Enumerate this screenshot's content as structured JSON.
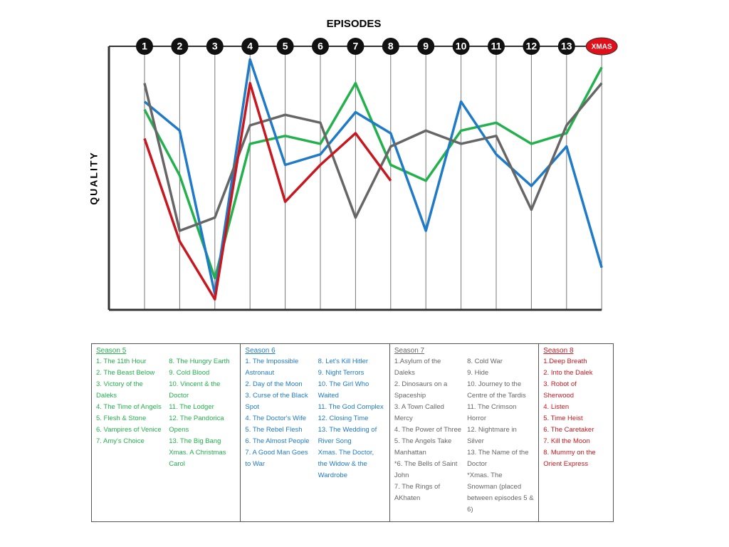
{
  "chart_data": {
    "type": "line",
    "title": "EPISODES",
    "y_label": "QUALITY",
    "categories": [
      "1",
      "2",
      "3",
      "4",
      "5",
      "6",
      "7",
      "8",
      "9",
      "10",
      "11",
      "12",
      "13",
      "XMAS"
    ],
    "ylim": [
      0,
      100
    ],
    "series": [
      {
        "name": "Season 5",
        "color": "#22b14c",
        "values": [
          76,
          51,
          12,
          63,
          66,
          63,
          86,
          55,
          49,
          68,
          71,
          63,
          67,
          92
        ],
        "episodes": [
          [
            "1. The 11th Hour",
            "2. The Beast Below",
            "3. Victory of the Daleks",
            "4. The Time of Angels",
            "5. Flesh & Stone",
            "6. Vampires of Venice",
            "7. Amy's Choice"
          ],
          [
            "8. The Hungry Earth",
            "9. Cold Blood",
            "10. Vincent & the Doctor",
            "11. The Lodger",
            "12. The Pandorica Opens",
            "13. The Big Bang",
            "Xmas. A Christmas Carol"
          ]
        ]
      },
      {
        "name": "Season 6",
        "color": "#1f7ac8",
        "values": [
          79,
          68,
          6,
          95,
          55,
          59,
          75,
          67,
          30,
          79,
          59,
          47,
          62,
          16
        ],
        "episodes": [
          [
            "1. The Impossible Astronaut",
            "2. Day of the Moon",
            "3. Curse of the Black Spot",
            "4. The Doctor's Wife",
            "5. The Rebel Flesh",
            "6. The Almost People",
            "7. A Good Man Goes to War"
          ],
          [
            "8. Let's Kill Hitler",
            "9. Night Terrors",
            "10. The Girl Who Waited",
            "11. The God Complex",
            "12. Closing Time",
            "13. The Wedding of River Song",
            "Xmas. The Doctor, the Widow & the Wardrobe"
          ]
        ]
      },
      {
        "name": "Season 7",
        "color": "#666666",
        "values": [
          86,
          30,
          35,
          70,
          74,
          71,
          35,
          62,
          68,
          63,
          66,
          38,
          70,
          86
        ],
        "episodes": [
          [
            "1.Asylum of the Daleks",
            "2. Dinosaurs on a Spaceship",
            "3. A Town Called Mercy",
            "4. The Power of Three",
            "5. The Angels Take Manhattan",
            "*6. The Bells of Saint John",
            "7. The Rings of AKhaten"
          ],
          [
            "8. Cold War",
            "9. Hide",
            "10. Journey to the Centre of the Tardis",
            "11. The Crimson Horror",
            "12. Nightmare in Silver",
            "13. The Name of the Doctor",
            "*Xmas. The Snowman (placed between episodes 5 & 6)"
          ]
        ]
      },
      {
        "name": "Season 8",
        "color": "#c8171e",
        "values": [
          65,
          26,
          4,
          86,
          41,
          55,
          67,
          49,
          null,
          null,
          null,
          null,
          null,
          null
        ],
        "episodes": [
          [
            "1.Deep Breath",
            "2. Into the Dalek",
            "3. Robot of Sherwood",
            "4. Listen",
            "5. Time Heist",
            "6. The Caretaker",
            "7. Kill the Moon",
            "8. Mummy on the Orient Express"
          ]
        ]
      }
    ]
  }
}
